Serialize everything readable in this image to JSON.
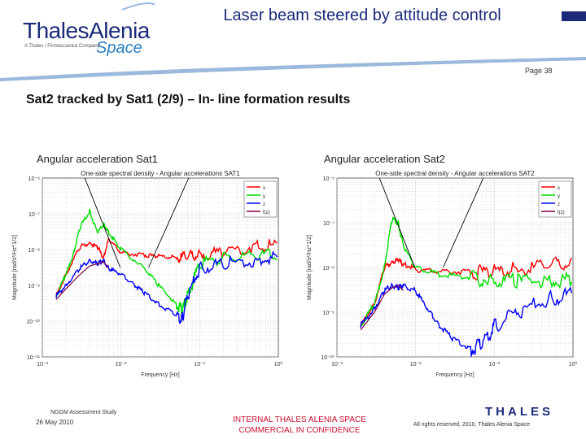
{
  "header": {
    "title": "Laser beam steered by attitude control",
    "page": "Page 38"
  },
  "logo": {
    "brand": "ThalesAlenia",
    "tagline": "A Thales / Finmeccanica Company",
    "space": "Space"
  },
  "slide": {
    "title": "Sat2 tracked by Sat1 (2/9) – In- line formation results"
  },
  "colors": {
    "x": "#ff0000",
    "y": "#00dd00",
    "z": "#0000ff",
    "fit": "#800040",
    "header_blue": "#1b2b7a",
    "accent_blue": "#2a7fc0",
    "classification_red": "#c8102e"
  },
  "chart_data": [
    {
      "type": "line",
      "caption": "Angular acceleration Sat1",
      "title": "One-side spectral density - Angular accelerations SAT1",
      "xlabel": "Frequency [Hz]",
      "ylabel": "Magnitude [rad/s²/Hz^1/2]",
      "xscale": "log",
      "yscale": "log",
      "xlim": [
        0.001,
        1
      ],
      "ylim": [
        1e-11,
        1e-06
      ],
      "x_ticks": [
        "10⁻³",
        "10⁻²",
        "10⁻¹",
        "10⁰"
      ],
      "y_ticks": [
        "10⁻⁶",
        "10⁻⁷",
        "10⁻⁸",
        "10⁻⁹",
        "10⁻¹⁰",
        "10⁻¹¹"
      ],
      "grid": true,
      "legend": {
        "position": "top-right",
        "entries": [
          "x",
          "y",
          "z",
          "f(z)"
        ]
      },
      "series": [
        {
          "name": "x",
          "x": [
            0.0015,
            0.002,
            0.003,
            0.004,
            0.005,
            0.006,
            0.007,
            0.01,
            0.02,
            0.03,
            0.05,
            0.07,
            0.1,
            0.2,
            0.5,
            1.0
          ],
          "y": [
            5e-10,
            2e-09,
            1.2e-08,
            1.5e-08,
            1.2e-08,
            6e-09,
            2e-08,
            8e-09,
            7e-09,
            6.5e-09,
            6e-09,
            6e-09,
            7e-09,
            9e-09,
            1.2e-08,
            1.4e-08
          ]
        },
        {
          "name": "y",
          "x": [
            0.0015,
            0.002,
            0.0025,
            0.003,
            0.004,
            0.005,
            0.006,
            0.007,
            0.01,
            0.02,
            0.03,
            0.05,
            0.06,
            0.07,
            0.1,
            0.2,
            0.5,
            1.0
          ],
          "y": [
            5e-10,
            2e-09,
            8e-09,
            4e-08,
            1.2e-07,
            3e-08,
            5e-08,
            3e-08,
            1e-08,
            3e-09,
            1e-09,
            3e-10,
            2e-10,
            5e-10,
            4e-09,
            6e-09,
            7e-09,
            8e-09
          ]
        },
        {
          "name": "z",
          "x": [
            0.0015,
            0.002,
            0.003,
            0.004,
            0.005,
            0.006,
            0.007,
            0.01,
            0.015,
            0.02,
            0.03,
            0.05,
            0.06,
            0.07,
            0.1,
            0.2,
            0.5,
            1.0
          ],
          "y": [
            5e-10,
            1e-09,
            3e-09,
            5e-09,
            4e-09,
            5e-09,
            3e-09,
            2e-09,
            1e-09,
            6e-10,
            3e-10,
            1.5e-10,
            1.2e-10,
            5e-10,
            3e-09,
            4e-09,
            5e-09,
            6e-09
          ]
        },
        {
          "name": "f(z)",
          "x": [
            0.0015,
            0.002,
            0.003,
            0.004,
            0.005,
            0.006,
            0.007
          ],
          "y": [
            4e-10,
            8e-10,
            2e-09,
            3.5e-09,
            4e-09,
            4.5e-09,
            3e-09
          ]
        }
      ]
    },
    {
      "type": "line",
      "caption": "Angular acceleration Sat2",
      "title": "One-side spectral density - Angular accelerations SAT2",
      "xlabel": "Frequency [Hz]",
      "ylabel": "Magnitude [rad/s²/Hz^1/2]",
      "xscale": "log",
      "yscale": "log",
      "xlim": [
        0.001,
        1
      ],
      "ylim": [
        1e-10,
        1e-06
      ],
      "x_ticks": [
        "10⁻³",
        "10⁻²",
        "10⁻¹",
        "10⁰"
      ],
      "y_ticks": [
        "10⁻⁶",
        "10⁻⁷",
        "10⁻⁸",
        "10⁻⁹",
        "10⁻¹⁰"
      ],
      "grid": true,
      "legend": {
        "position": "top-right",
        "entries": [
          "x",
          "y",
          "z",
          "f(z)"
        ]
      },
      "series": [
        {
          "name": "x",
          "x": [
            0.002,
            0.003,
            0.004,
            0.005,
            0.006,
            0.007,
            0.01,
            0.02,
            0.05,
            0.1,
            0.2,
            0.5,
            1.0
          ],
          "y": [
            5e-10,
            1.5e-09,
            1e-08,
            1.3e-08,
            1.5e-08,
            1.2e-08,
            9e-09,
            8e-09,
            8e-09,
            8e-09,
            9e-09,
            1.1e-08,
            1.2e-08
          ]
        },
        {
          "name": "y",
          "x": [
            0.002,
            0.003,
            0.004,
            0.005,
            0.006,
            0.007,
            0.01,
            0.02,
            0.05,
            0.1,
            0.2,
            0.5,
            1.0
          ],
          "y": [
            5e-10,
            1.5e-09,
            1e-08,
            1.2e-07,
            1e-07,
            3e-08,
            1e-08,
            7e-09,
            6e-09,
            5e-09,
            5e-09,
            5e-09,
            5e-09
          ]
        },
        {
          "name": "z",
          "x": [
            0.002,
            0.003,
            0.004,
            0.005,
            0.006,
            0.007,
            0.01,
            0.015,
            0.02,
            0.03,
            0.05,
            0.07,
            0.1,
            0.2,
            0.5,
            1.0
          ],
          "y": [
            5e-10,
            1.2e-09,
            3e-09,
            4e-09,
            3.5e-09,
            4e-09,
            3e-09,
            1e-09,
            5e-10,
            2.5e-10,
            1.5e-10,
            2e-10,
            5e-10,
            1e-09,
            2e-09,
            2.5e-09
          ]
        },
        {
          "name": "f(z)",
          "x": [
            0.002,
            0.003,
            0.004,
            0.005,
            0.006,
            0.007
          ],
          "y": [
            4e-10,
            1e-09,
            2.5e-09,
            3.5e-09,
            4e-09,
            3e-09
          ]
        }
      ]
    }
  ],
  "footer": {
    "study": "NGGM Assessment Study",
    "date": "26 May 2010",
    "classification_line1": "INTERNAL THALES ALENIA SPACE",
    "classification_line2": "COMMERCIAL IN CONFIDENCE",
    "rights": "All rights reserved, 2010, Thales Alenia Space",
    "thales_logo": "THALES"
  }
}
